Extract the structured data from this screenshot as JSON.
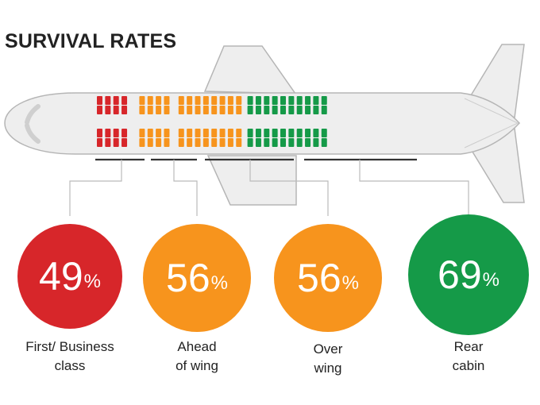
{
  "title": "SURVIVAL RATES",
  "colors": {
    "first_business": "#d7262a",
    "ahead_of_wing": "#f7941d",
    "over_wing": "#f7941d",
    "rear_cabin": "#159a48",
    "plane_fill": "#eeeeee",
    "plane_stroke": "#b5b5b5",
    "connector": "#bbbbbb"
  },
  "sections": [
    {
      "key": "first_business",
      "value": "49",
      "unit": "%",
      "label_lines": [
        "First/ Business",
        "class"
      ]
    },
    {
      "key": "ahead_of_wing",
      "value": "56",
      "unit": "%",
      "label_lines": [
        "Ahead",
        "of wing"
      ]
    },
    {
      "key": "over_wing",
      "value": "56",
      "unit": "%",
      "label_lines": [
        "Over",
        "wing"
      ]
    },
    {
      "key": "rear_cabin",
      "value": "69",
      "unit": "%",
      "label_lines": [
        "Rear",
        "cabin"
      ]
    }
  ],
  "seat_rows": {
    "first_business": 4,
    "ahead_of_wing": 4,
    "over_wing": 8,
    "rear_cabin": 10
  },
  "seat_groups": {
    "top_rows": 2,
    "bottom_rows": 2
  }
}
